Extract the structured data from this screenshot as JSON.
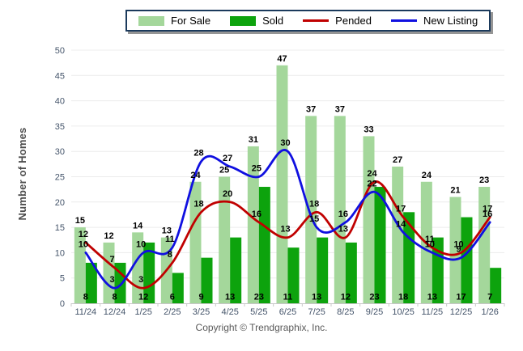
{
  "legend": {
    "items": [
      {
        "label": "For Sale",
        "type": "bar",
        "series_index": 0
      },
      {
        "label": "Sold",
        "type": "bar",
        "series_index": 1
      },
      {
        "label": "Pended",
        "type": "line",
        "series_index": 2
      },
      {
        "label": "New Listing",
        "type": "line",
        "series_index": 3
      }
    ]
  },
  "chart_data": {
    "type": "bar",
    "subtype": "grouped-bars-with-smoothed-lines",
    "categories": [
      "11/24",
      "12/24",
      "1/25",
      "2/25",
      "3/25",
      "4/25",
      "5/25",
      "6/25",
      "7/25",
      "8/25",
      "9/25",
      "10/25",
      "11/25",
      "12/25",
      "1/26"
    ],
    "series": [
      {
        "name": "For Sale",
        "type": "bar",
        "color": "#A4D79B",
        "values": [
          15,
          12,
          14,
          13,
          24,
          25,
          31,
          47,
          37,
          37,
          33,
          27,
          24,
          21,
          23
        ]
      },
      {
        "name": "Sold",
        "type": "bar",
        "color": "#0DA30D",
        "values": [
          8,
          8,
          12,
          6,
          9,
          13,
          23,
          11,
          13,
          12,
          23,
          18,
          13,
          17,
          7
        ]
      },
      {
        "name": "Pended",
        "type": "line",
        "color": "#C00000",
        "values": [
          12,
          7,
          3,
          8,
          18,
          20,
          16,
          13,
          18,
          13,
          24,
          17,
          11,
          10,
          17
        ]
      },
      {
        "name": "New Listing",
        "type": "line",
        "color": "#1010E0",
        "values": [
          10,
          3,
          10,
          11,
          28,
          27,
          25,
          30,
          15,
          16,
          22,
          14,
          10,
          9,
          16
        ]
      }
    ],
    "title": "",
    "xlabel": "",
    "ylabel": "Number of Homes",
    "ylim": [
      0,
      50
    ],
    "ytick_step": 5,
    "grid": "horizontal",
    "legend_position": "top-center",
    "colors": {
      "gridline": "#ECECEC",
      "axis": "#C8C8C8",
      "tick_text": "#44546A",
      "data_label_text": "#000000",
      "legend_border": "#1B3A5C",
      "footer_text": "#595959"
    }
  },
  "footer": {
    "copyright": "Copyright © Trendgraphix, Inc."
  }
}
